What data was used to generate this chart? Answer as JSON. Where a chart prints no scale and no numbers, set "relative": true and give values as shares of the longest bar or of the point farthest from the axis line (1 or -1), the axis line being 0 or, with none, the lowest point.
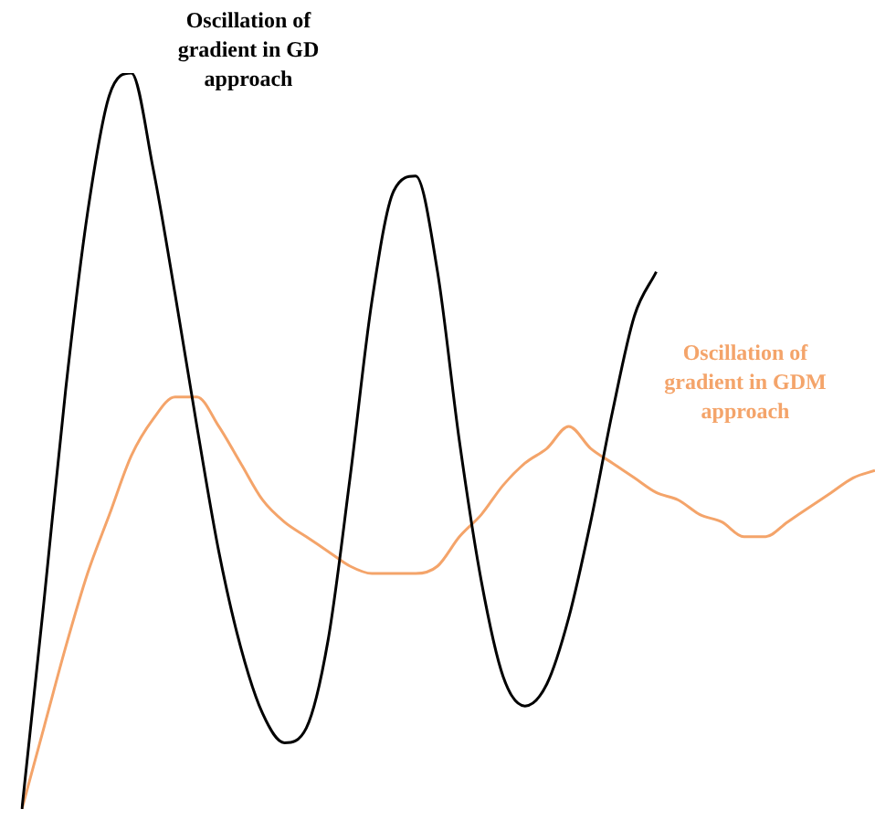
{
  "chart_data": {
    "type": "line",
    "relative": true,
    "legend": false,
    "marker": "none",
    "line_style": "solid",
    "categories": [
      null,
      null,
      null,
      null,
      null,
      null,
      null,
      null,
      null,
      null,
      null,
      null,
      null,
      null,
      null,
      null,
      null,
      null,
      null,
      null,
      null,
      null,
      null,
      null,
      null,
      null,
      null,
      null,
      null,
      null,
      null,
      null,
      null,
      null,
      null,
      null,
      null,
      null,
      null,
      null
    ],
    "series": [
      {
        "name": "Oscillation of gradient in GD approach",
        "color": "#000000",
        "values": [
          0,
          0.28,
          0.57,
          0.81,
          0.97,
          1,
          0.87,
          0.7,
          0.52,
          0.35,
          0.22,
          0.13,
          0.09,
          0.11,
          0.23,
          0.45,
          0.69,
          0.84,
          0.86,
          0.73,
          0.5,
          0.31,
          0.18,
          0.14,
          0.17,
          0.26,
          0.39,
          0.54,
          0.67,
          0.73,
          null,
          null,
          null,
          null,
          null,
          null,
          null,
          null,
          null,
          null
        ]
      },
      {
        "name": "Oscillation of gradient in GDM approach",
        "color": "#f4a46a",
        "values": [
          0,
          0.11,
          0.22,
          0.32,
          0.4,
          0.48,
          0.53,
          0.56,
          0.56,
          0.52,
          0.47,
          0.42,
          0.39,
          0.37,
          0.35,
          0.33,
          0.32,
          0.32,
          0.32,
          0.33,
          0.37,
          0.4,
          0.44,
          0.47,
          0.49,
          0.52,
          0.49,
          0.47,
          0.45,
          0.43,
          0.42,
          0.4,
          0.39,
          0.37,
          0.37,
          0.39,
          0.41,
          0.43,
          0.45,
          0.46
        ]
      }
    ]
  }
}
